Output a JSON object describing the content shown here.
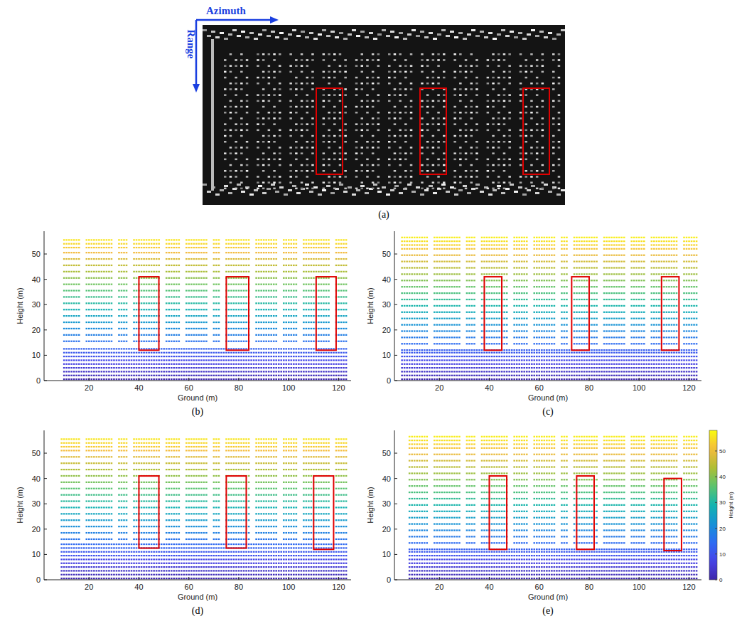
{
  "image_panel": {
    "panel_label": "(a)",
    "azimuth_label": "Azimuth",
    "range_label": "Range"
  },
  "chart_data": [
    {
      "type": "scatter",
      "panel_label": "(b)",
      "xlabel": "Ground (m)",
      "ylabel": "Height (m)",
      "xlim": [
        2,
        125
      ],
      "ylim": [
        0,
        59
      ],
      "xticks": [
        20,
        40,
        60,
        80,
        100,
        120
      ],
      "yticks": [
        0,
        10,
        20,
        30,
        40,
        50
      ],
      "facade_x": [
        10,
        123
      ],
      "ground_top": 13,
      "floors": [
        0.5,
        2,
        3.5,
        5,
        6.5,
        8,
        9.5,
        11,
        12.5,
        15.5,
        18,
        20.5,
        23,
        25.5,
        28,
        30.5,
        33,
        35.5,
        38,
        40.5,
        43,
        45.5,
        48,
        50.5,
        52.5,
        54,
        55.5
      ],
      "gaps": [
        [
          17,
          18
        ],
        [
          30,
          31
        ],
        [
          36,
          37.5
        ],
        [
          49,
          50.5
        ],
        [
          57,
          58
        ],
        [
          68,
          69.5
        ],
        [
          73,
          74
        ],
        [
          85,
          86.5
        ],
        [
          96,
          97.5
        ],
        [
          104,
          105
        ],
        [
          117,
          118.5
        ]
      ],
      "boxes": [
        {
          "x": [
            40,
            48
          ],
          "y": [
            12,
            41
          ]
        },
        {
          "x": [
            75,
            84
          ],
          "y": [
            12,
            41
          ]
        },
        {
          "x": [
            111,
            119
          ],
          "y": [
            12,
            41
          ]
        }
      ]
    },
    {
      "type": "scatter",
      "panel_label": "(c)",
      "xlabel": "Ground (m)",
      "ylabel": "Height (m)",
      "xlim": [
        2,
        125
      ],
      "ylim": [
        0,
        59
      ],
      "xticks": [
        20,
        40,
        60,
        80,
        100,
        120
      ],
      "yticks": [
        0,
        10,
        20,
        30,
        40,
        50
      ],
      "facade_x": [
        5,
        123
      ],
      "ground_top": 12,
      "floors": [
        0.5,
        2,
        3.5,
        5,
        6.5,
        8,
        9.5,
        11,
        12,
        14.5,
        17,
        19.5,
        22,
        24.5,
        27,
        29.5,
        32,
        34.5,
        37,
        39.5,
        42,
        44.5,
        47,
        49.5,
        52,
        53.5,
        55,
        56.5
      ],
      "gaps": [
        [
          16,
          17
        ],
        [
          29,
          30
        ],
        [
          35,
          36.5
        ],
        [
          48,
          49.5
        ],
        [
          56,
          57
        ],
        [
          67,
          68.5
        ],
        [
          72,
          73
        ],
        [
          84,
          85.5
        ],
        [
          95,
          96.5
        ],
        [
          103,
          104
        ],
        [
          116,
          117.5
        ]
      ],
      "boxes": [
        {
          "x": [
            38,
            45
          ],
          "y": [
            12,
            41
          ]
        },
        {
          "x": [
            73,
            80
          ],
          "y": [
            12,
            41
          ]
        },
        {
          "x": [
            109,
            116
          ],
          "y": [
            12,
            41
          ]
        }
      ]
    },
    {
      "type": "scatter",
      "panel_label": "(d)",
      "xlabel": "Ground (m)",
      "ylabel": "Height (m)",
      "xlim": [
        2,
        125
      ],
      "ylim": [
        0,
        59
      ],
      "xticks": [
        20,
        40,
        60,
        80,
        100,
        120
      ],
      "yticks": [
        0,
        10,
        20,
        30,
        40,
        50
      ],
      "facade_x": [
        9,
        123
      ],
      "ground_top": 14,
      "floors": [
        0.5,
        2,
        3.5,
        5,
        6.5,
        8,
        9.5,
        11,
        12.5,
        14,
        16,
        18.5,
        21,
        23.5,
        26,
        28.5,
        31,
        33.5,
        36,
        38.5,
        41,
        43.5,
        46,
        48.5,
        51,
        52.5,
        54,
        55.5
      ],
      "gaps": [
        [
          17,
          18
        ],
        [
          30,
          31
        ],
        [
          36,
          37.5
        ],
        [
          49,
          50.5
        ],
        [
          57,
          58
        ],
        [
          68,
          69.5
        ],
        [
          73,
          74
        ],
        [
          85,
          86.5
        ],
        [
          96,
          97.5
        ],
        [
          104,
          105
        ],
        [
          117,
          118.5
        ]
      ],
      "boxes": [
        {
          "x": [
            40,
            48
          ],
          "y": [
            12.5,
            41
          ]
        },
        {
          "x": [
            75,
            83
          ],
          "y": [
            12.5,
            41
          ]
        },
        {
          "x": [
            110,
            118
          ],
          "y": [
            12,
            41
          ]
        }
      ]
    },
    {
      "type": "scatter",
      "panel_label": "(e)",
      "xlabel": "Ground (m)",
      "ylabel": "Height (m)",
      "xlim": [
        2,
        125
      ],
      "ylim": [
        0,
        59
      ],
      "xticks": [
        20,
        40,
        60,
        80,
        100,
        120
      ],
      "yticks": [
        0,
        10,
        20,
        30,
        40,
        50
      ],
      "facade_x": [
        8,
        123
      ],
      "ground_top": 12,
      "floors": [
        0.5,
        2,
        3.5,
        5,
        6.5,
        8,
        9.5,
        11,
        12,
        14.5,
        17,
        19.5,
        22,
        24.5,
        27,
        29.5,
        32,
        34.5,
        37,
        39.5,
        42,
        44.5,
        47,
        49.5,
        52,
        53.5,
        55,
        56.5
      ],
      "gaps": [
        [
          16,
          17
        ],
        [
          29,
          30
        ],
        [
          35,
          36.5
        ],
        [
          48,
          49.5
        ],
        [
          56,
          57
        ],
        [
          67,
          68.5
        ],
        [
          72,
          73
        ],
        [
          84,
          85.5
        ],
        [
          95,
          96.5
        ],
        [
          103,
          104
        ],
        [
          116,
          117.5
        ]
      ],
      "boxes": [
        {
          "x": [
            40,
            47
          ],
          "y": [
            12,
            41
          ]
        },
        {
          "x": [
            75,
            82
          ],
          "y": [
            12,
            41
          ]
        },
        {
          "x": [
            110,
            117
          ],
          "y": [
            11.5,
            40
          ]
        }
      ],
      "colorbar": {
        "range": [
          0,
          58
        ],
        "ticks": [
          0,
          10,
          20,
          30,
          40,
          50
        ],
        "label": "Height (m)"
      }
    }
  ]
}
